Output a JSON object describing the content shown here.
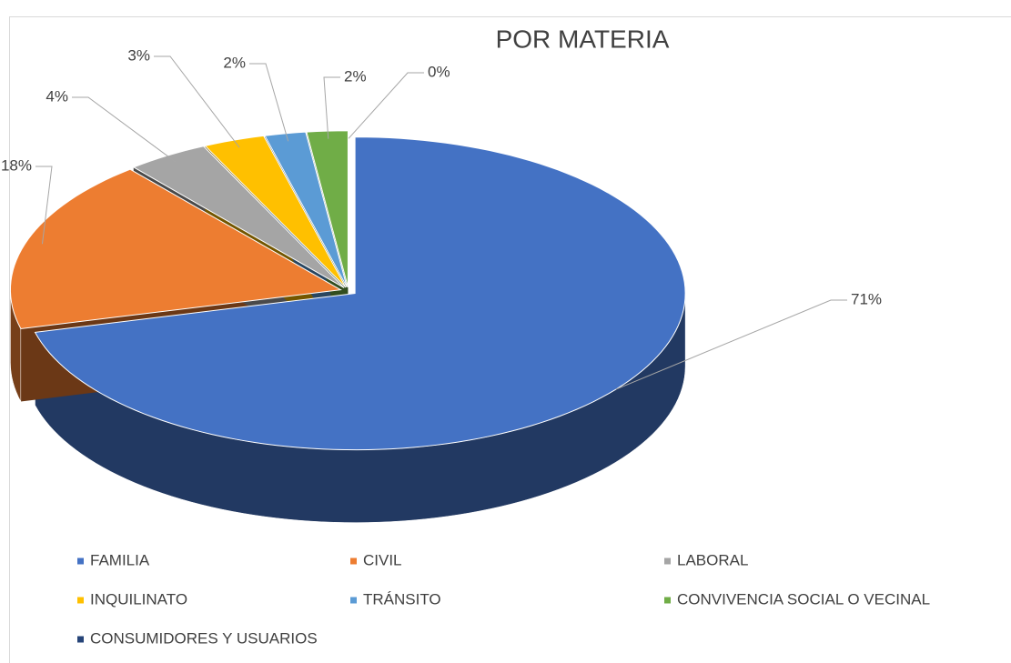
{
  "chart_data": {
    "type": "pie",
    "title": "POR MATERIA",
    "categories": [
      "FAMILIA",
      "CIVIL",
      "LABORAL",
      "INQUILINATO",
      "TRÁNSITO",
      "CONVIVENCIA SOCIAL O VECINAL",
      "CONSUMIDORES Y USUARIOS"
    ],
    "values": [
      71,
      18,
      4,
      3,
      2,
      2,
      0
    ],
    "value_labels": [
      "71%",
      "18%",
      "4%",
      "3%",
      "2%",
      "2%",
      "0%"
    ],
    "colors": [
      "#4472c4",
      "#ed7d31",
      "#a5a5a5",
      "#ffc000",
      "#5b9bd5",
      "#70ad47",
      "#264478"
    ],
    "legend": "bottom"
  }
}
